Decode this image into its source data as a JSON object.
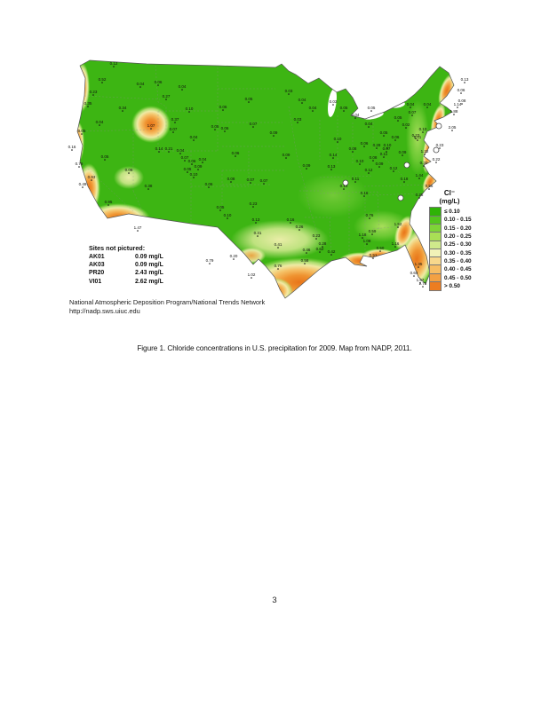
{
  "page": {
    "number": "3",
    "caption": "Figure 1. Chloride concentrations in U.S. precipitation for 2009. Map from NADP, 2011."
  },
  "figure": {
    "attribution_line1": "National Atmospheric Deposition Program/National Trends Network",
    "attribution_line2": "http://nadp.sws.uiuc.edu",
    "legend": {
      "title_line1": "Cl⁻",
      "title_line2": "(mg/L)",
      "classes": [
        {
          "label": "≤ 0.10",
          "color": "#2fb306"
        },
        {
          "label": "0.10 - 0.15",
          "color": "#53c51d"
        },
        {
          "label": "0.15 - 0.20",
          "color": "#7ed437"
        },
        {
          "label": "0.20 - 0.25",
          "color": "#a9df55"
        },
        {
          "label": "0.25 - 0.30",
          "color": "#cfe98b"
        },
        {
          "label": "0.30 - 0.35",
          "color": "#f1f2b8"
        },
        {
          "label": "0.35 - 0.40",
          "color": "#f8d88c"
        },
        {
          "label": "0.40 - 0.45",
          "color": "#f7bd63"
        },
        {
          "label": "0.45 - 0.50",
          "color": "#f3a143"
        },
        {
          "label": "> 0.50",
          "color": "#ec7d21"
        }
      ]
    },
    "sites_not_pictured": {
      "title": "Sites not pictured:",
      "rows": [
        {
          "site": "AK01",
          "value": "0.09 mg/L"
        },
        {
          "site": "AK03",
          "value": "0.09 mg/L"
        },
        {
          "site": "PR20",
          "value": "2.43 mg/L"
        },
        {
          "site": "VI01",
          "value": "2.62 mg/L"
        }
      ]
    },
    "map_colors": {
      "base_green": "#3db513",
      "high_orange": "#e8751a",
      "outline": "#555555"
    },
    "map_sites": [
      [
        53,
        12,
        "0.12"
      ],
      [
        83,
        35,
        "0.04"
      ],
      [
        103,
        33,
        "0.06"
      ],
      [
        130,
        38,
        "0.04"
      ],
      [
        112,
        49,
        "0.27"
      ],
      [
        63,
        62,
        "0.34"
      ],
      [
        138,
        63,
        "0.10"
      ],
      [
        122,
        75,
        "0.37"
      ],
      [
        120,
        86,
        "0.07"
      ],
      [
        37,
        78,
        "0.04"
      ],
      [
        17,
        88,
        "0.05"
      ],
      [
        6,
        106,
        "0.16"
      ],
      [
        43,
        117,
        "0.05"
      ],
      [
        95,
        82,
        "1.07"
      ],
      [
        40,
        30,
        "0.52"
      ],
      [
        30,
        44,
        "0.23"
      ],
      [
        24,
        57,
        "0.35"
      ],
      [
        14,
        125,
        "0.76"
      ],
      [
        28,
        140,
        "0.93"
      ],
      [
        18,
        148,
        "0.49"
      ],
      [
        47,
        168,
        "0.95"
      ],
      [
        80,
        197,
        "1.47"
      ],
      [
        92,
        150,
        "0.38"
      ],
      [
        70,
        132,
        "0.06"
      ],
      [
        104,
        108,
        "0.14"
      ],
      [
        115,
        108,
        "0.21"
      ],
      [
        128,
        110,
        "0.04"
      ],
      [
        143,
        95,
        "0.04"
      ],
      [
        133,
        118,
        "0.07"
      ],
      [
        141,
        122,
        "0.06"
      ],
      [
        148,
        128,
        "0.09"
      ],
      [
        136,
        131,
        "0.05"
      ],
      [
        143,
        137,
        "0.10"
      ],
      [
        153,
        120,
        "0.04"
      ],
      [
        160,
        148,
        "0.06"
      ],
      [
        173,
        174,
        "0.05"
      ],
      [
        167,
        83,
        "0.05"
      ],
      [
        178,
        85,
        "0.06"
      ],
      [
        205,
        52,
        "0.05"
      ],
      [
        176,
        61,
        "0.06"
      ],
      [
        233,
        90,
        "0.09"
      ],
      [
        210,
        80,
        "0.07"
      ],
      [
        207,
        143,
        "0.07"
      ],
      [
        222,
        144,
        "0.07"
      ],
      [
        185,
        142,
        "0.08"
      ],
      [
        190,
        113,
        "0.06"
      ],
      [
        247,
        115,
        "0.09"
      ],
      [
        250,
        43,
        "0.03"
      ],
      [
        265,
        53,
        "0.04"
      ],
      [
        277,
        62,
        "0.04"
      ],
      [
        300,
        55,
        "0.03"
      ],
      [
        312,
        62,
        "0.05"
      ],
      [
        260,
        75,
        "0.03"
      ],
      [
        305,
        97,
        "0.10"
      ],
      [
        300,
        115,
        "0.14"
      ],
      [
        298,
        128,
        "0.13"
      ],
      [
        270,
        127,
        "0.09"
      ],
      [
        210,
        170,
        "0.23"
      ],
      [
        181,
        183,
        "0.10"
      ],
      [
        213,
        188,
        "0.13"
      ],
      [
        252,
        188,
        "0.16"
      ],
      [
        262,
        196,
        "0.26"
      ],
      [
        215,
        203,
        "0.31"
      ],
      [
        238,
        216,
        "0.41"
      ],
      [
        281,
        206,
        "0.23"
      ],
      [
        288,
        215,
        "0.28"
      ],
      [
        188,
        229,
        "0.20"
      ],
      [
        161,
        234,
        "0.79"
      ],
      [
        238,
        240,
        "0.76"
      ],
      [
        268,
        234,
        "0.58"
      ],
      [
        208,
        250,
        "1.02"
      ],
      [
        270,
        222,
        "0.46"
      ],
      [
        285,
        221,
        "0.62"
      ],
      [
        298,
        224,
        "0.42"
      ],
      [
        322,
        108,
        "0.08"
      ],
      [
        335,
        102,
        "0.06"
      ],
      [
        330,
        122,
        "0.10"
      ],
      [
        345,
        118,
        "0.08"
      ],
      [
        340,
        132,
        "0.12"
      ],
      [
        325,
        142,
        "0.11"
      ],
      [
        312,
        150,
        "0.14"
      ],
      [
        335,
        158,
        "0.16"
      ],
      [
        352,
        125,
        "0.09"
      ],
      [
        360,
        108,
        "0.07"
      ],
      [
        357,
        90,
        "0.05"
      ],
      [
        340,
        80,
        "0.04"
      ],
      [
        325,
        70,
        "0.04"
      ],
      [
        343,
        62,
        "0.05"
      ],
      [
        370,
        95,
        "0.06"
      ],
      [
        378,
        112,
        "0.09"
      ],
      [
        368,
        130,
        "0.12"
      ],
      [
        380,
        142,
        "0.18"
      ],
      [
        341,
        183,
        "0.76"
      ],
      [
        373,
        193,
        "1.52"
      ],
      [
        344,
        201,
        "0.59"
      ],
      [
        333,
        205,
        "1.18"
      ],
      [
        338,
        212,
        "1.08"
      ],
      [
        370,
        215,
        "1.16"
      ],
      [
        353,
        220,
        "0.50"
      ],
      [
        345,
        228,
        "0.51"
      ],
      [
        396,
        238,
        "1.35"
      ],
      [
        391,
        248,
        "0.64"
      ],
      [
        398,
        256,
        "1.57"
      ],
      [
        401,
        260,
        "2.72"
      ],
      [
        397,
        160,
        "0.25"
      ],
      [
        408,
        150,
        "0.56"
      ],
      [
        402,
        124,
        "0.30"
      ],
      [
        395,
        95,
        "0.11"
      ],
      [
        387,
        58,
        "0.04"
      ],
      [
        406,
        58,
        "0.04"
      ],
      [
        389,
        67,
        "0.07"
      ],
      [
        436,
        66,
        "1.88"
      ],
      [
        434,
        84,
        "2.05"
      ],
      [
        448,
        30,
        "0.13"
      ],
      [
        444,
        42,
        "0.06"
      ],
      [
        445,
        54,
        "0.08"
      ],
      [
        440,
        58,
        "1.14"
      ],
      [
        373,
        73,
        "0.05"
      ],
      [
        382,
        81,
        "0.02"
      ],
      [
        401,
        86,
        "0.10"
      ],
      [
        393,
        93,
        "0.23"
      ],
      [
        349,
        104,
        "0.28"
      ],
      [
        361,
        104,
        "0.10"
      ],
      [
        420,
        104,
        "0.23"
      ],
      [
        403,
        111,
        "1.22"
      ],
      [
        357,
        114,
        "0.11"
      ],
      [
        397,
        138,
        "1.44"
      ],
      [
        416,
        120,
        "0.22"
      ]
    ],
    "circled_sites": [
      [
        419,
        82
      ],
      [
        416,
        109
      ],
      [
        383,
        126
      ],
      [
        376,
        163
      ],
      [
        314,
        146
      ]
    ]
  }
}
